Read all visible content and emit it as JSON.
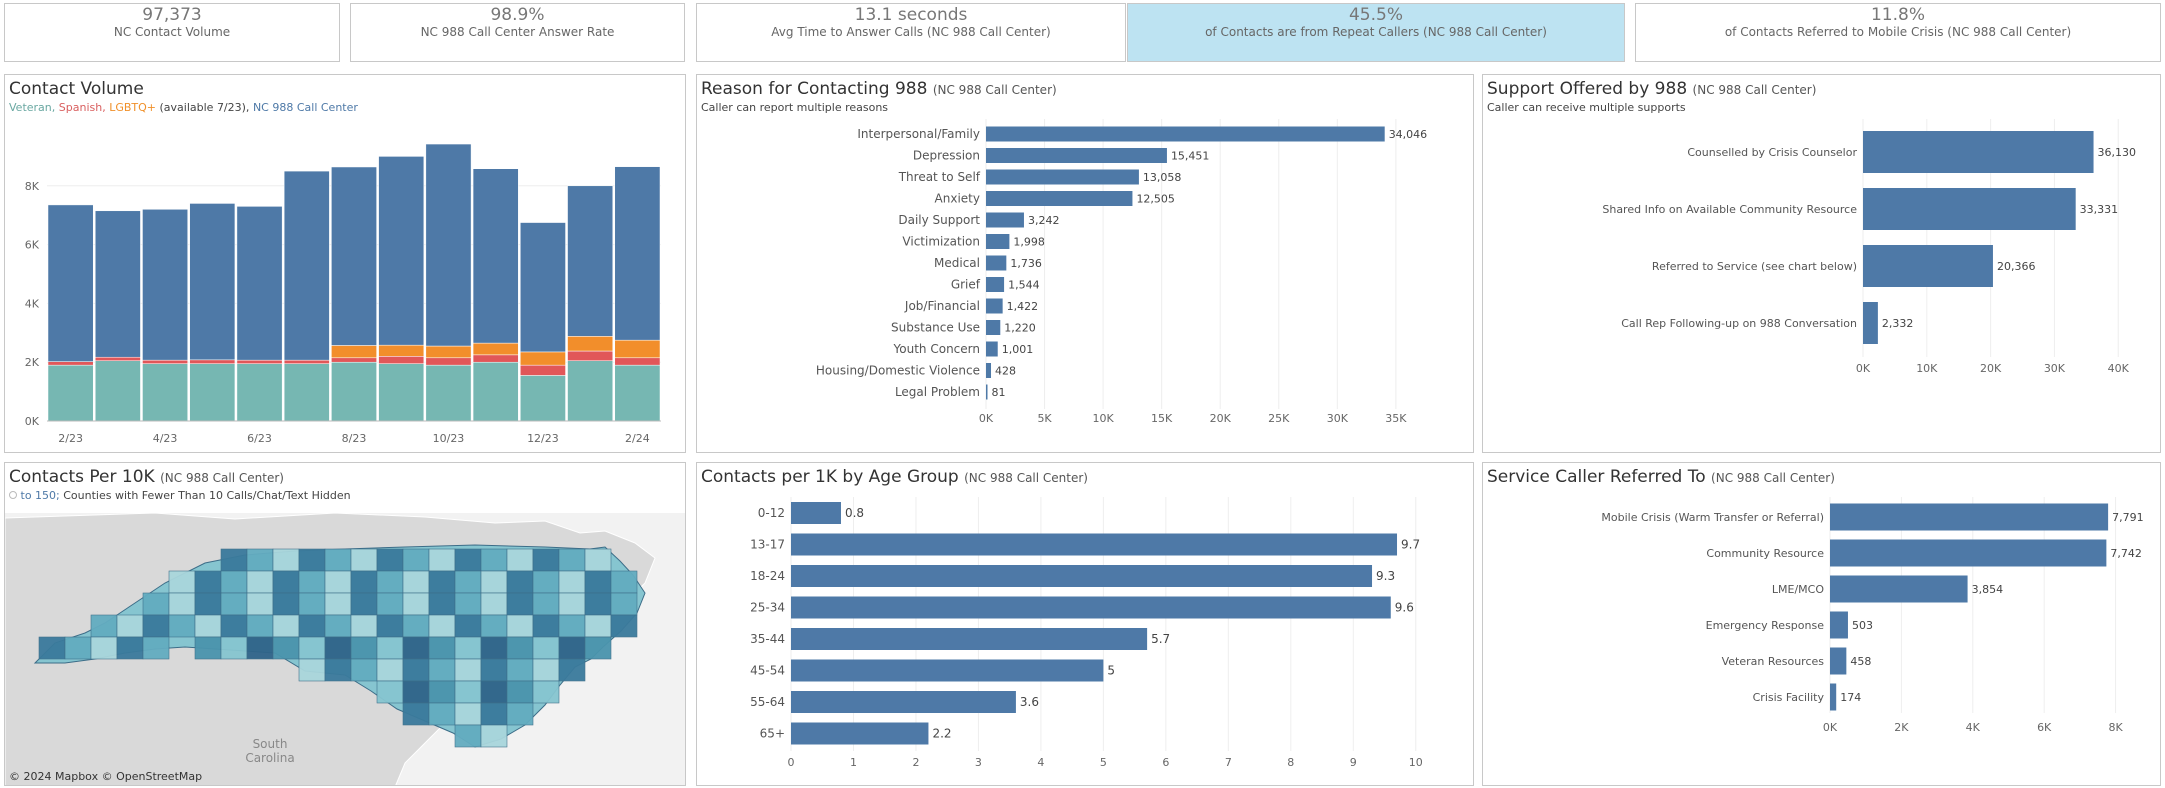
{
  "kpis": [
    {
      "value": "97,373",
      "label": "NC Contact Volume"
    },
    {
      "value": "98.9%",
      "label": "NC 988 Call Center Answer Rate"
    },
    {
      "value": "13.1 seconds",
      "label": "Avg Time to Answer Calls (NC 988 Call Center)"
    },
    {
      "value": "45.5%",
      "label": "of Contacts are from Repeat Callers (NC 988 Call Center)"
    },
    {
      "value": "11.8%",
      "label": "of Contacts Referred to Mobile Crisis (NC 988 Call Center)"
    }
  ],
  "colors": {
    "nc": "#4e79a7",
    "veteran": "#76b7b2",
    "spanish": "#e15759",
    "lgbtq": "#f28e2b",
    "highlight": "#bde3f2",
    "grid": "#eeeeee",
    "map_land": "#d9d9d9",
    "map_water": "#f2f2f2"
  },
  "contact_volume": {
    "title": "Contact Volume",
    "legend": {
      "veteran": "Veteran,",
      "spanish": "Spanish,",
      "lgbtq": "LGBTQ+",
      "lgbtq_note": "(available 7/23),",
      "nc": "NC 988 Call Center"
    }
  },
  "reasons": {
    "title": "Reason for Contacting 988",
    "title_small": "(NC 988 Call Center)",
    "subtitle": "Caller can report multiple reasons"
  },
  "support": {
    "title": "Support Offered by 988",
    "title_small": "(NC 988 Call Center)",
    "subtitle": "Caller can receive multiple supports"
  },
  "map": {
    "title": "Contacts Per 10K",
    "title_small": "(NC 988 Call Center)",
    "legend_icon": "circle-outline-icon",
    "legend_value": "to 150;",
    "legend_text": "Counties with Fewer Than 10 Calls/Chat/Text Hidden",
    "attribution": "© 2024 Mapbox © OpenStreetMap",
    "label_south": "South",
    "label_carolina": "Carolina"
  },
  "age": {
    "title": "Contacts per 1K by Age Group",
    "title_small": "(NC 988 Call Center)"
  },
  "referred": {
    "title": "Service Caller Referred To",
    "title_small": "(NC 988 Call Center)"
  },
  "chart_data": [
    {
      "id": "contact-volume",
      "type": "bar",
      "stacked": true,
      "title": "Contact Volume",
      "categories": [
        "2/23",
        "3/23",
        "4/23",
        "5/23",
        "6/23",
        "7/23",
        "8/23",
        "9/23",
        "10/23",
        "11/23",
        "12/23",
        "1/24",
        "2/24"
      ],
      "tick_labels": [
        "2/23",
        "4/23",
        "6/23",
        "8/23",
        "10/23",
        "12/23",
        "2/24"
      ],
      "series": [
        {
          "name": "Veteran",
          "values": [
            1900,
            2050,
            1950,
            1950,
            1950,
            1950,
            2000,
            1950,
            1900,
            2000,
            1550,
            2050,
            1900
          ]
        },
        {
          "name": "Spanish",
          "values": [
            120,
            120,
            120,
            130,
            120,
            120,
            150,
            250,
            250,
            250,
            350,
            330,
            250
          ]
        },
        {
          "name": "LGBTQ+",
          "values": [
            0,
            0,
            0,
            0,
            0,
            0,
            420,
            380,
            400,
            400,
            450,
            500,
            600
          ]
        },
        {
          "name": "NC 988 Call Center",
          "values": [
            5330,
            4980,
            5130,
            5320,
            5230,
            6430,
            6070,
            6420,
            6870,
            5930,
            4400,
            5120,
            5900
          ]
        }
      ],
      "ylim": [
        0,
        10000
      ],
      "yticks": [
        0,
        2000,
        4000,
        6000,
        8000
      ],
      "ytick_labels": [
        "0K",
        "2K",
        "4K",
        "6K",
        "8K"
      ],
      "grid": true
    },
    {
      "id": "reasons",
      "type": "bar",
      "orientation": "horizontal",
      "title": "Reason for Contacting 988",
      "categories": [
        "Interpersonal/Family",
        "Depression",
        "Threat to Self",
        "Anxiety",
        "Daily Support",
        "Victimization",
        "Medical",
        "Grief",
        "Job/Financial",
        "Substance Use",
        "Youth Concern",
        "Housing/Domestic Violence",
        "Legal Problem"
      ],
      "values": [
        34046,
        15451,
        13058,
        12505,
        3242,
        1998,
        1736,
        1544,
        1422,
        1220,
        1001,
        428,
        81
      ],
      "labels": [
        "34,046",
        "15,451",
        "13,058",
        "12,505",
        "3,242",
        "1,998",
        "1,736",
        "1,544",
        "1,422",
        "1,220",
        "1,001",
        "428",
        "81"
      ],
      "xlim": [
        0,
        38000
      ],
      "xticks": [
        0,
        5000,
        10000,
        15000,
        20000,
        25000,
        30000,
        35000
      ],
      "xtick_labels": [
        "0K",
        "5K",
        "10K",
        "15K",
        "20K",
        "25K",
        "30K",
        "35K"
      ]
    },
    {
      "id": "support",
      "type": "bar",
      "orientation": "horizontal",
      "title": "Support Offered by 988",
      "categories": [
        "Counselled by Crisis Counselor",
        "Shared Info on Available Community Resource",
        "Referred to Service (see chart below)",
        "Call Rep Following-up on 988 Conversation"
      ],
      "values": [
        36130,
        33331,
        20366,
        2332
      ],
      "labels": [
        "36,130",
        "33,331",
        "20,366",
        "2,332"
      ],
      "xlim": [
        0,
        42000
      ],
      "xticks": [
        0,
        10000,
        20000,
        30000,
        40000
      ],
      "xtick_labels": [
        "0K",
        "10K",
        "20K",
        "30K",
        "40K"
      ]
    },
    {
      "id": "age",
      "type": "bar",
      "orientation": "horizontal",
      "title": "Contacts per 1K by Age Group",
      "categories": [
        "0-12",
        "13-17",
        "18-24",
        "25-34",
        "35-44",
        "45-54",
        "55-64",
        "65+"
      ],
      "values": [
        0.8,
        9.7,
        9.3,
        9.6,
        5.7,
        5,
        3.6,
        2.2
      ],
      "labels": [
        "0.8",
        "9.7",
        "9.3",
        "9.6",
        "5.7",
        "5",
        "3.6",
        "2.2"
      ],
      "xlim": [
        0,
        10.5
      ],
      "xticks": [
        0,
        1,
        2,
        3,
        4,
        5,
        6,
        7,
        8,
        9,
        10
      ],
      "xtick_labels": [
        "0",
        "1",
        "2",
        "3",
        "4",
        "5",
        "6",
        "7",
        "8",
        "9",
        "10"
      ]
    },
    {
      "id": "referred",
      "type": "bar",
      "orientation": "horizontal",
      "title": "Service Caller Referred To",
      "categories": [
        "Mobile Crisis (Warm Transfer or Referral)",
        "Community Resource",
        "LME/MCO",
        "Emergency Response",
        "Veteran Resources",
        "Crisis Facility"
      ],
      "values": [
        7791,
        7742,
        3854,
        503,
        458,
        174
      ],
      "labels": [
        "7,791",
        "7,742",
        "3,854",
        "503",
        "458",
        "174"
      ],
      "xlim": [
        0,
        8600
      ],
      "xticks": [
        0,
        2000,
        4000,
        6000,
        8000
      ],
      "xtick_labels": [
        "0K",
        "2K",
        "4K",
        "6K",
        "8K"
      ]
    }
  ]
}
